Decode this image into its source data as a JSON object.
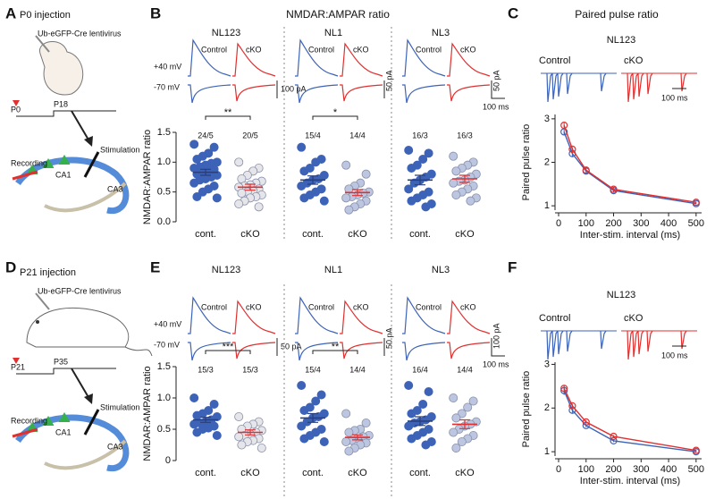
{
  "figure": {
    "panel_labels": [
      "A",
      "B",
      "C",
      "D",
      "E",
      "F"
    ],
    "row1": {
      "injection": "P0 injection",
      "virus": "Ub-eGFP-Cre lentivirus",
      "start": "P0",
      "end": "P18",
      "recording": "Recording",
      "stimulation": "Stimulation",
      "ca1": "CA1",
      "ca3": "CA3"
    },
    "row2": {
      "injection": "P21 injection",
      "virus": "Ub-eGFP-Cre lentivirus",
      "start": "P21",
      "end": "P35",
      "recording": "Recording",
      "stimulation": "Stimulation",
      "ca1": "CA1",
      "ca3": "CA3"
    },
    "nmdar_title": "NMDAR:AMPAR ratio",
    "ppr_title": "Paired pulse ratio",
    "voltages": [
      "+40 mV",
      "-70 mV"
    ],
    "trace_labels": [
      "Control",
      "cKO"
    ],
    "b_scales": [
      "100 pA",
      "50 pA",
      "50 pA"
    ],
    "e_scales": [
      "50 pA",
      "50 pA",
      "100 pA"
    ],
    "time_scale": "100 ms"
  },
  "chart_data": [
    {
      "type": "dotplot",
      "title": "NL123",
      "ylabel": "NMDAR:AMPAR ratio",
      "categories": [
        "cont.",
        "cKO"
      ],
      "n_labels": [
        "24/5",
        "20/5"
      ],
      "significance": "**",
      "ylim": [
        0,
        1.5
      ],
      "yticks": [
        {
          "value": 0,
          "label": "0.0"
        },
        0.5,
        {
          "value": 1,
          "label": "1.0"
        },
        1.5
      ],
      "groups": [
        {
          "color": "#3d63b8",
          "mean_color": "#2a3f7a",
          "mean": 0.83,
          "sem": 0.05,
          "values": [
            1.3,
            1.25,
            1.15,
            1.1,
            1.05,
            1.0,
            0.98,
            0.95,
            0.92,
            0.9,
            0.88,
            0.85,
            0.82,
            0.8,
            0.78,
            0.75,
            0.72,
            0.7,
            0.65,
            0.6,
            0.55,
            0.5,
            0.42,
            0.4
          ]
        },
        {
          "color": "#e6e6ea",
          "mean_color": "#e03030",
          "mean": 0.58,
          "sem": 0.05,
          "values": [
            1.0,
            0.9,
            0.85,
            0.78,
            0.72,
            0.68,
            0.65,
            0.62,
            0.6,
            0.58,
            0.55,
            0.52,
            0.5,
            0.48,
            0.45,
            0.42,
            0.4,
            0.35,
            0.3,
            0.25
          ]
        }
      ]
    },
    {
      "type": "dotplot",
      "title": "NL1",
      "categories": [
        "cont.",
        "cKO"
      ],
      "n_labels": [
        "15/4",
        "14/4"
      ],
      "significance": "*",
      "ylim": [
        0,
        1.5
      ],
      "groups": [
        {
          "color": "#3d63b8",
          "mean_color": "#2a3f7a",
          "mean": 0.7,
          "sem": 0.07,
          "values": [
            1.25,
            1.05,
            1.0,
            0.9,
            0.85,
            0.78,
            0.72,
            0.7,
            0.65,
            0.6,
            0.55,
            0.5,
            0.45,
            0.4,
            0.35
          ]
        },
        {
          "color": "#bcc6e0",
          "mean_color": "#e03030",
          "mean": 0.49,
          "sem": 0.05,
          "values": [
            0.95,
            0.8,
            0.65,
            0.6,
            0.55,
            0.5,
            0.48,
            0.45,
            0.42,
            0.4,
            0.35,
            0.3,
            0.25,
            0.2
          ]
        }
      ]
    },
    {
      "type": "dotplot",
      "title": "NL3",
      "categories": [
        "cont.",
        "cKO"
      ],
      "n_labels": [
        "16/3",
        "16/3"
      ],
      "ylim": [
        0,
        1.5
      ],
      "groups": [
        {
          "color": "#3d63b8",
          "mean_color": "#2a3f7a",
          "mean": 0.7,
          "sem": 0.08,
          "values": [
            1.2,
            1.15,
            1.05,
            0.95,
            0.9,
            0.8,
            0.75,
            0.7,
            0.65,
            0.55,
            0.5,
            0.45,
            0.4,
            0.35,
            0.3,
            0.25
          ]
        },
        {
          "color": "#bcc6e0",
          "mean_color": "#e03030",
          "mean": 0.72,
          "sem": 0.06,
          "values": [
            1.1,
            1.0,
            0.95,
            0.9,
            0.85,
            0.8,
            0.75,
            0.7,
            0.68,
            0.65,
            0.6,
            0.55,
            0.5,
            0.45,
            0.4,
            0.35
          ]
        }
      ]
    },
    {
      "type": "line",
      "title": "NL123",
      "xlabel": "Inter-stim. interval (ms)",
      "ylabel": "Paired pulse ratio",
      "x": [
        20,
        50,
        100,
        200,
        500
      ],
      "xlim": [
        0,
        520
      ],
      "xticks": [
        0,
        100,
        200,
        300,
        400,
        500
      ],
      "ylim": [
        0.9,
        3.1
      ],
      "yticks": [
        1,
        2,
        3
      ],
      "series": [
        {
          "name": "Control",
          "color": "#3d63b8",
          "values": [
            2.7,
            2.2,
            1.8,
            1.35,
            1.05
          ],
          "errors": [
            0.08,
            0.07,
            0.04,
            0.03,
            0.02
          ]
        },
        {
          "name": "cKO",
          "color": "#e03030",
          "values": [
            2.85,
            2.3,
            1.82,
            1.38,
            1.08
          ],
          "errors": [
            0.06,
            0.05,
            0.04,
            0.03,
            0.02
          ]
        }
      ]
    },
    {
      "type": "dotplot",
      "title": "NL123",
      "ylabel": "NMDAR:AMPAR ratio",
      "categories": [
        "cont.",
        "cKO"
      ],
      "n_labels": [
        "15/3",
        "15/3"
      ],
      "significance": "***",
      "ylim": [
        0,
        1.5
      ],
      "yticks": [
        0,
        0.5,
        {
          "value": 1,
          "label": "1.0"
        },
        1.5
      ],
      "groups": [
        {
          "color": "#3d63b8",
          "mean_color": "#2a3f7a",
          "mean": 0.65,
          "sem": 0.04,
          "values": [
            1.0,
            0.9,
            0.8,
            0.75,
            0.72,
            0.7,
            0.65,
            0.62,
            0.6,
            0.58,
            0.55,
            0.52,
            0.5,
            0.45,
            0.4
          ]
        },
        {
          "color": "#e6e6ea",
          "mean_color": "#e03030",
          "mean": 0.45,
          "sem": 0.04,
          "values": [
            0.7,
            0.62,
            0.58,
            0.55,
            0.5,
            0.48,
            0.45,
            0.42,
            0.4,
            0.38,
            0.35,
            0.32,
            0.3,
            0.25,
            0.2
          ]
        }
      ]
    },
    {
      "type": "dotplot",
      "title": "NL1",
      "categories": [
        "cont.",
        "cKO"
      ],
      "n_labels": [
        "15/4",
        "14/4"
      ],
      "significance": "**",
      "ylim": [
        0,
        1.5
      ],
      "groups": [
        {
          "color": "#3d63b8",
          "mean_color": "#2a3f7a",
          "mean": 0.68,
          "sem": 0.07,
          "values": [
            1.2,
            1.05,
            0.95,
            0.85,
            0.8,
            0.75,
            0.7,
            0.68,
            0.62,
            0.55,
            0.5,
            0.45,
            0.4,
            0.35,
            0.3
          ]
        },
        {
          "color": "#bcc6e0",
          "mean_color": "#e03030",
          "mean": 0.37,
          "sem": 0.04,
          "values": [
            0.75,
            0.6,
            0.5,
            0.48,
            0.45,
            0.4,
            0.38,
            0.35,
            0.32,
            0.3,
            0.28,
            0.25,
            0.2,
            0.15
          ]
        }
      ]
    },
    {
      "type": "dotplot",
      "title": "NL3",
      "categories": [
        "cont.",
        "cKO"
      ],
      "n_labels": [
        "16/4",
        "14/4"
      ],
      "ylim": [
        0,
        1.5
      ],
      "groups": [
        {
          "color": "#3d63b8",
          "mean_color": "#2a3f7a",
          "mean": 0.63,
          "sem": 0.07,
          "values": [
            1.2,
            1.1,
            0.9,
            0.8,
            0.75,
            0.7,
            0.65,
            0.62,
            0.6,
            0.55,
            0.5,
            0.45,
            0.4,
            0.35,
            0.3,
            0.25
          ]
        },
        {
          "color": "#bcc6e0",
          "mean_color": "#e03030",
          "mean": 0.58,
          "sem": 0.07,
          "values": [
            1.0,
            0.95,
            0.85,
            0.75,
            0.68,
            0.62,
            0.58,
            0.55,
            0.5,
            0.45,
            0.4,
            0.35,
            0.3,
            0.2
          ]
        }
      ]
    },
    {
      "type": "line",
      "title": "NL123",
      "xlabel": "Inter-stim. interval (ms)",
      "ylabel": "Paired pulse ratio",
      "x": [
        20,
        50,
        100,
        200,
        500
      ],
      "xlim": [
        0,
        520
      ],
      "xticks": [
        0,
        100,
        200,
        300,
        400,
        500
      ],
      "ylim": [
        0.9,
        3.05
      ],
      "yticks": [
        1,
        2,
        3
      ],
      "series": [
        {
          "name": "Control",
          "color": "#3d63b8",
          "values": [
            2.4,
            1.95,
            1.6,
            1.25,
            1.0
          ],
          "errors": [
            0.1,
            0.06,
            0.04,
            0.03,
            0.02
          ]
        },
        {
          "name": "cKO",
          "color": "#e03030",
          "values": [
            2.45,
            2.05,
            1.68,
            1.35,
            1.03
          ],
          "errors": [
            0.08,
            0.05,
            0.04,
            0.03,
            0.02
          ]
        }
      ]
    }
  ]
}
